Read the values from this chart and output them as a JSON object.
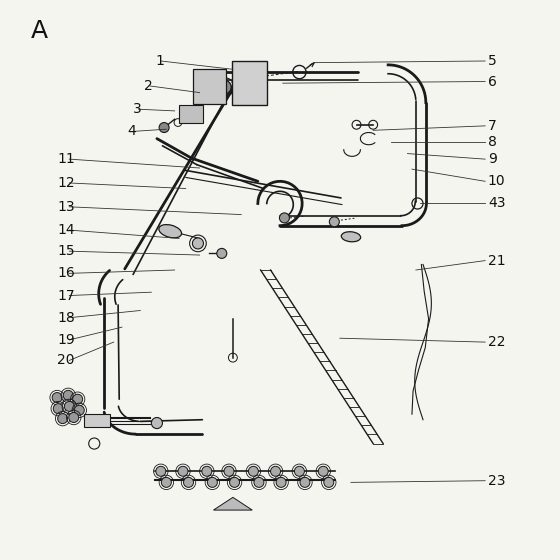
{
  "title": "A",
  "bg_color": "#f5f5f0",
  "line_color": "#1a1a1a",
  "label_color": "#111111",
  "label_fontsize": 10,
  "figsize": [
    5.6,
    5.6
  ],
  "dpi": 100,
  "leaders": {
    "1": {
      "lpos": [
        0.255,
        0.895
      ],
      "tpos": [
        0.415,
        0.88
      ]
    },
    "2": {
      "lpos": [
        0.235,
        0.85
      ],
      "tpos": [
        0.355,
        0.838
      ]
    },
    "3": {
      "lpos": [
        0.215,
        0.808
      ],
      "tpos": [
        0.31,
        0.805
      ]
    },
    "4": {
      "lpos": [
        0.205,
        0.768
      ],
      "tpos": [
        0.295,
        0.772
      ]
    },
    "5": {
      "lpos": [
        0.87,
        0.895
      ],
      "tpos": [
        0.56,
        0.892
      ]
    },
    "6": {
      "lpos": [
        0.87,
        0.858
      ],
      "tpos": [
        0.505,
        0.855
      ]
    },
    "7": {
      "lpos": [
        0.87,
        0.778
      ],
      "tpos": [
        0.668,
        0.77
      ]
    },
    "8": {
      "lpos": [
        0.87,
        0.748
      ],
      "tpos": [
        0.7,
        0.748
      ]
    },
    "9": {
      "lpos": [
        0.87,
        0.718
      ],
      "tpos": [
        0.73,
        0.728
      ]
    },
    "10": {
      "lpos": [
        0.87,
        0.678
      ],
      "tpos": [
        0.738,
        0.7
      ]
    },
    "11": {
      "lpos": [
        0.078,
        0.718
      ],
      "tpos": [
        0.355,
        0.702
      ]
    },
    "12": {
      "lpos": [
        0.078,
        0.675
      ],
      "tpos": [
        0.33,
        0.665
      ]
    },
    "13": {
      "lpos": [
        0.078,
        0.632
      ],
      "tpos": [
        0.43,
        0.618
      ]
    },
    "14": {
      "lpos": [
        0.078,
        0.59
      ],
      "tpos": [
        0.318,
        0.575
      ]
    },
    "15": {
      "lpos": [
        0.078,
        0.552
      ],
      "tpos": [
        0.355,
        0.545
      ]
    },
    "16": {
      "lpos": [
        0.078,
        0.512
      ],
      "tpos": [
        0.31,
        0.518
      ]
    },
    "17": {
      "lpos": [
        0.078,
        0.472
      ],
      "tpos": [
        0.268,
        0.478
      ]
    },
    "18": {
      "lpos": [
        0.078,
        0.432
      ],
      "tpos": [
        0.248,
        0.445
      ]
    },
    "19": {
      "lpos": [
        0.078,
        0.392
      ],
      "tpos": [
        0.215,
        0.415
      ]
    },
    "20": {
      "lpos": [
        0.078,
        0.355
      ],
      "tpos": [
        0.2,
        0.388
      ]
    },
    "21": {
      "lpos": [
        0.87,
        0.535
      ],
      "tpos": [
        0.745,
        0.518
      ]
    },
    "22": {
      "lpos": [
        0.87,
        0.388
      ],
      "tpos": [
        0.608,
        0.395
      ]
    },
    "23": {
      "lpos": [
        0.87,
        0.138
      ],
      "tpos": [
        0.628,
        0.135
      ]
    },
    "43": {
      "lpos": [
        0.87,
        0.638
      ],
      "tpos": [
        0.752,
        0.638
      ]
    }
  }
}
